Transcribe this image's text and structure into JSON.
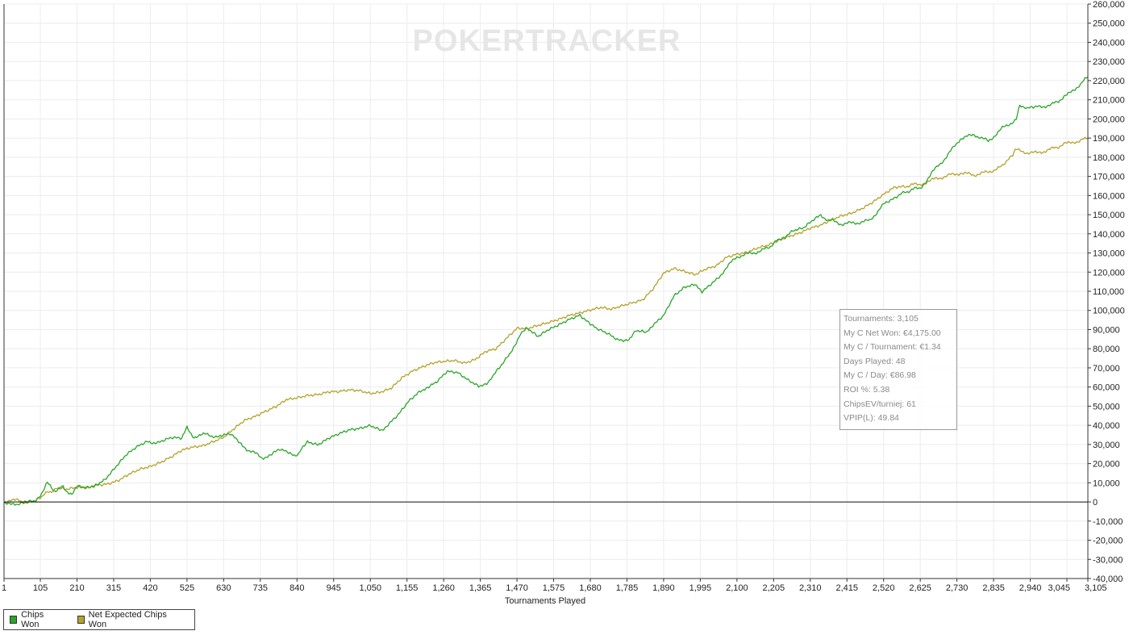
{
  "chart_data": {
    "type": "line",
    "watermark": "POKERTRACKER",
    "xlabel": "Tournaments Played",
    "ylabel": "",
    "xlim": [
      1,
      3105
    ],
    "ylim": [
      -40000,
      260000
    ],
    "x_ticks": [
      {
        "value": 1,
        "label": "1"
      },
      {
        "value": 105,
        "label": "105"
      },
      {
        "value": 210,
        "label": "210"
      },
      {
        "value": 315,
        "label": "315"
      },
      {
        "value": 420,
        "label": "420"
      },
      {
        "value": 525,
        "label": "525"
      },
      {
        "value": 630,
        "label": "630"
      },
      {
        "value": 735,
        "label": "735"
      },
      {
        "value": 840,
        "label": "840"
      },
      {
        "value": 945,
        "label": "945"
      },
      {
        "value": 1050,
        "label": "1,050"
      },
      {
        "value": 1155,
        "label": "1,155"
      },
      {
        "value": 1260,
        "label": "1,260"
      },
      {
        "value": 1365,
        "label": "1,365"
      },
      {
        "value": 1470,
        "label": "1,470"
      },
      {
        "value": 1575,
        "label": "1,575"
      },
      {
        "value": 1680,
        "label": "1,680"
      },
      {
        "value": 1785,
        "label": "1,785"
      },
      {
        "value": 1890,
        "label": "1,890"
      },
      {
        "value": 1995,
        "label": "1,995"
      },
      {
        "value": 2100,
        "label": "2,100"
      },
      {
        "value": 2205,
        "label": "2,205"
      },
      {
        "value": 2310,
        "label": "2,310"
      },
      {
        "value": 2415,
        "label": "2,415"
      },
      {
        "value": 2520,
        "label": "2,520"
      },
      {
        "value": 2625,
        "label": "2,625"
      },
      {
        "value": 2730,
        "label": "2,730"
      },
      {
        "value": 2835,
        "label": "2,835"
      },
      {
        "value": 2940,
        "label": "2,940"
      },
      {
        "value": 3045,
        "label": "3,045"
      },
      {
        "value": 3105,
        "label": "3,105"
      }
    ],
    "y_ticks": [
      {
        "value": 260000,
        "label": "260,000"
      },
      {
        "value": 250000,
        "label": "250,000"
      },
      {
        "value": 240000,
        "label": "240,000"
      },
      {
        "value": 230000,
        "label": "230,000"
      },
      {
        "value": 220000,
        "label": "220,000"
      },
      {
        "value": 210000,
        "label": "210,000"
      },
      {
        "value": 200000,
        "label": "200,000"
      },
      {
        "value": 190000,
        "label": "190,000"
      },
      {
        "value": 180000,
        "label": "180,000"
      },
      {
        "value": 170000,
        "label": "170,000"
      },
      {
        "value": 160000,
        "label": "160,000"
      },
      {
        "value": 150000,
        "label": "150,000"
      },
      {
        "value": 140000,
        "label": "140,000"
      },
      {
        "value": 130000,
        "label": "130,000"
      },
      {
        "value": 120000,
        "label": "120,000"
      },
      {
        "value": 110000,
        "label": "110,000"
      },
      {
        "value": 100000,
        "label": "100,000"
      },
      {
        "value": 90000,
        "label": "90,000"
      },
      {
        "value": 80000,
        "label": "80,000"
      },
      {
        "value": 70000,
        "label": "70,000"
      },
      {
        "value": 60000,
        "label": "60,000"
      },
      {
        "value": 50000,
        "label": "50,000"
      },
      {
        "value": 40000,
        "label": "40,000"
      },
      {
        "value": 30000,
        "label": "30,000"
      },
      {
        "value": 20000,
        "label": "20,000"
      },
      {
        "value": 10000,
        "label": "10,000"
      },
      {
        "value": 0,
        "label": "0"
      },
      {
        "value": -10000,
        "label": "-10,000"
      },
      {
        "value": -20000,
        "label": "-20,000"
      },
      {
        "value": -30000,
        "label": "-30,000"
      },
      {
        "value": -40000,
        "label": "-40,000"
      }
    ],
    "grid": true,
    "legend_position": "bottom-left",
    "series": [
      {
        "name": "Chips Won",
        "color": "#2aa52a",
        "x": [
          1,
          40,
          60,
          85,
          100,
          125,
          145,
          170,
          195,
          210,
          230,
          260,
          290,
          320,
          350,
          380,
          410,
          450,
          480,
          510,
          525,
          545,
          580,
          620,
          650,
          680,
          700,
          720,
          740,
          760,
          790,
          820,
          845,
          870,
          900,
          930,
          960,
          990,
          1020,
          1050,
          1080,
          1100,
          1130,
          1160,
          1190,
          1210,
          1240,
          1270,
          1300,
          1330,
          1360,
          1375,
          1400,
          1430,
          1460,
          1480,
          1500,
          1530,
          1560,
          1590,
          1620,
          1650,
          1680,
          1700,
          1730,
          1760,
          1790,
          1810,
          1840,
          1860,
          1890,
          1920,
          1950,
          1980,
          2000,
          2030,
          2060,
          2100,
          2140,
          2180,
          2205,
          2230,
          2260,
          2290,
          2320,
          2340,
          2360,
          2400,
          2440,
          2480,
          2520,
          2550,
          2580,
          2625,
          2660,
          2700,
          2740,
          2780,
          2820,
          2860,
          2900,
          2910,
          2930,
          2960,
          3000,
          3045,
          3080,
          3105
        ],
        "values": [
          0,
          -2000,
          1000,
          0,
          2000,
          10000,
          6000,
          8000,
          3000,
          8000,
          8000,
          9000,
          12000,
          18000,
          24000,
          28000,
          31000,
          31000,
          33000,
          33000,
          39000,
          34000,
          35000,
          34000,
          35000,
          30000,
          27000,
          25000,
          23000,
          24000,
          27000,
          25000,
          25000,
          32000,
          30000,
          33000,
          35000,
          37000,
          38000,
          40000,
          38000,
          40000,
          45000,
          52000,
          57000,
          60000,
          63000,
          68000,
          67000,
          63000,
          60000,
          61000,
          65000,
          72000,
          80000,
          88000,
          90000,
          86000,
          90000,
          93000,
          96000,
          98000,
          93000,
          90000,
          88000,
          85000,
          85000,
          89000,
          88000,
          93000,
          98000,
          108000,
          112000,
          113000,
          110000,
          115000,
          120000,
          128000,
          130000,
          132000,
          135000,
          138000,
          142000,
          143000,
          147000,
          150000,
          147000,
          145000,
          146000,
          147000,
          155000,
          158000,
          162000,
          164000,
          172000,
          180000,
          190000,
          192000,
          188000,
          195000,
          200000,
          208000,
          205000,
          206000,
          207000,
          212000,
          218000,
          222000
        ]
      },
      {
        "name": "Net Expected Chips Won",
        "color": "#b5a22a",
        "x": [
          1,
          40,
          60,
          85,
          100,
          125,
          150,
          180,
          210,
          240,
          270,
          300,
          330,
          360,
          390,
          420,
          450,
          480,
          510,
          540,
          570,
          600,
          630,
          660,
          690,
          720,
          750,
          780,
          810,
          840,
          870,
          900,
          930,
          960,
          990,
          1020,
          1050,
          1080,
          1110,
          1140,
          1170,
          1200,
          1230,
          1260,
          1290,
          1320,
          1350,
          1380,
          1410,
          1440,
          1470,
          1500,
          1530,
          1560,
          1590,
          1620,
          1650,
          1680,
          1710,
          1740,
          1770,
          1800,
          1830,
          1860,
          1890,
          1920,
          1950,
          1980,
          2010,
          2040,
          2070,
          2100,
          2130,
          2160,
          2190,
          2220,
          2250,
          2280,
          2310,
          2340,
          2370,
          2400,
          2430,
          2460,
          2490,
          2520,
          2550,
          2580,
          2625,
          2660,
          2700,
          2740,
          2780,
          2820,
          2860,
          2890,
          2900,
          2920,
          2960,
          3000,
          3045,
          3080,
          3105
        ],
        "values": [
          0,
          1000,
          0,
          0,
          2000,
          5000,
          7000,
          6000,
          7000,
          7000,
          9000,
          10000,
          12000,
          15000,
          17000,
          18000,
          20000,
          23000,
          27000,
          29000,
          30000,
          32000,
          34000,
          38000,
          42000,
          44000,
          47000,
          50000,
          54000,
          55000,
          56000,
          56000,
          57000,
          57000,
          58000,
          58000,
          57000,
          58000,
          60000,
          65000,
          68000,
          70000,
          72000,
          73000,
          74000,
          73000,
          75000,
          79000,
          80000,
          85000,
          90000,
          90000,
          92000,
          94000,
          96000,
          98000,
          99000,
          100000,
          101000,
          100000,
          102000,
          104000,
          106000,
          112000,
          120000,
          122000,
          120000,
          118000,
          121000,
          123000,
          128000,
          130000,
          131000,
          133000,
          134000,
          136000,
          138000,
          140000,
          143000,
          145000,
          148000,
          150000,
          151000,
          153000,
          156000,
          160000,
          164000,
          165000,
          166000,
          168000,
          170000,
          172000,
          171000,
          172000,
          175000,
          181000,
          184000,
          183000,
          182000,
          184000,
          187000,
          189000,
          190000
        ]
      }
    ]
  },
  "stats": {
    "lines": [
      "Tournaments: 3,105",
      "My C Net Won: €4,175.00",
      "My C / Tournament: €1.34",
      "Days Played: 48",
      "My C / Day: €86.98",
      "ROI %: 5.38",
      "ChipsEV/turniej: 61",
      "VPIP(L): 49.84"
    ]
  },
  "legend": {
    "items": [
      {
        "label": "Chips Won",
        "color": "#2aa52a"
      },
      {
        "label": "Net Expected Chips Won",
        "color": "#b5a22a"
      }
    ]
  }
}
